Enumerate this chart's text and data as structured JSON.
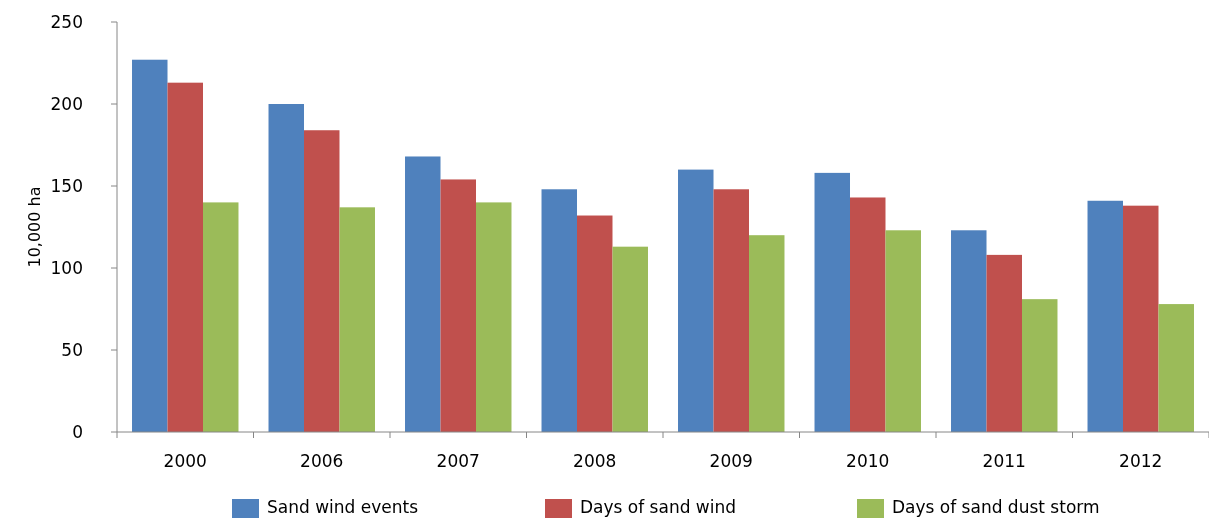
{
  "chart_data": {
    "type": "bar",
    "ylabel": "10,000 ha",
    "categories": [
      "2000",
      "2006",
      "2007",
      "2008",
      "2009",
      "2010",
      "2011",
      "2012"
    ],
    "series": [
      {
        "name": "Sand wind events",
        "color": "#4f81bd",
        "values": [
          227,
          200,
          168,
          148,
          160,
          158,
          123,
          141
        ]
      },
      {
        "name": "Days of sand wind",
        "color": "#c0504d",
        "values": [
          213,
          184,
          154,
          132,
          148,
          143,
          108,
          138
        ]
      },
      {
        "name": "Days of sand dust storm",
        "color": "#9bbb59",
        "values": [
          140,
          137,
          140,
          113,
          120,
          123,
          81,
          78
        ]
      }
    ],
    "ylim": [
      0,
      250
    ],
    "yticks": [
      0,
      50,
      100,
      150,
      200,
      250
    ],
    "grid": false,
    "legend": "bottom"
  }
}
